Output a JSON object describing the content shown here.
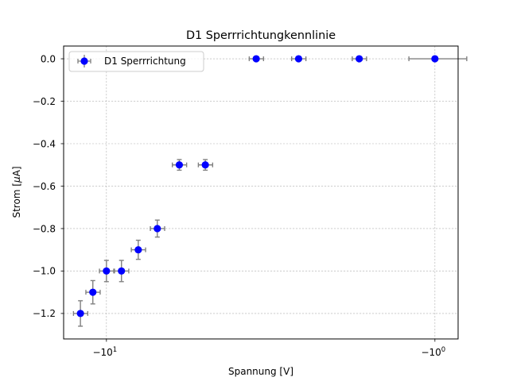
{
  "chart_data": {
    "type": "scatter",
    "title": "D1 Sperrrichtungkennlinie",
    "xlabel": "Spannung [V]",
    "ylabel_prefix": "Strom [",
    "ylabel_mu": "μ",
    "ylabel_suffix": "A]",
    "x_scale": "symlog (negative values, log magnitude)",
    "xlim": [
      -13.5,
      -0.85
    ],
    "ylim": [
      -1.32,
      0.06
    ],
    "grid": true,
    "legend_position": "top-left",
    "x_ticks": [
      {
        "value": -10,
        "label_base": "−10",
        "label_exp": "1"
      },
      {
        "value": -1,
        "label_base": "−10",
        "label_exp": "0"
      }
    ],
    "y_ticks": [
      {
        "value": 0.0,
        "label": "0.0"
      },
      {
        "value": -0.2,
        "label": "−0.2"
      },
      {
        "value": -0.4,
        "label": "−0.4"
      },
      {
        "value": -0.6,
        "label": "−0.6"
      },
      {
        "value": -0.8,
        "label": "−0.8"
      },
      {
        "value": -1.0,
        "label": "−1.0"
      },
      {
        "value": -1.2,
        "label": "−1.2"
      }
    ],
    "series": [
      {
        "name": "D1 Sperrrichtung",
        "color": "#0000ff",
        "errorbar_color": "#808080",
        "points": [
          {
            "x": -12.0,
            "y": -1.2,
            "xerr": 0.6,
            "yerr": 0.06
          },
          {
            "x": -11.0,
            "y": -1.1,
            "xerr": 0.55,
            "yerr": 0.055
          },
          {
            "x": -10.0,
            "y": -1.0,
            "xerr": 0.5,
            "yerr": 0.05
          },
          {
            "x": -9.0,
            "y": -1.0,
            "xerr": 0.45,
            "yerr": 0.05
          },
          {
            "x": -8.0,
            "y": -0.9,
            "xerr": 0.4,
            "yerr": 0.045
          },
          {
            "x": -7.0,
            "y": -0.8,
            "xerr": 0.35,
            "yerr": 0.04
          },
          {
            "x": -6.0,
            "y": -0.5,
            "xerr": 0.3,
            "yerr": 0.025
          },
          {
            "x": -5.0,
            "y": -0.5,
            "xerr": 0.25,
            "yerr": 0.025
          },
          {
            "x": -3.5,
            "y": 0.0,
            "xerr": 0.175,
            "yerr": 0.0
          },
          {
            "x": -2.6,
            "y": 0.0,
            "xerr": 0.13,
            "yerr": 0.0
          },
          {
            "x": -1.7,
            "y": 0.0,
            "xerr": 0.085,
            "yerr": 0.0
          },
          {
            "x": -1.0,
            "y": 0.0,
            "xerr": 0.2,
            "yerr": 0.0
          }
        ]
      }
    ]
  }
}
